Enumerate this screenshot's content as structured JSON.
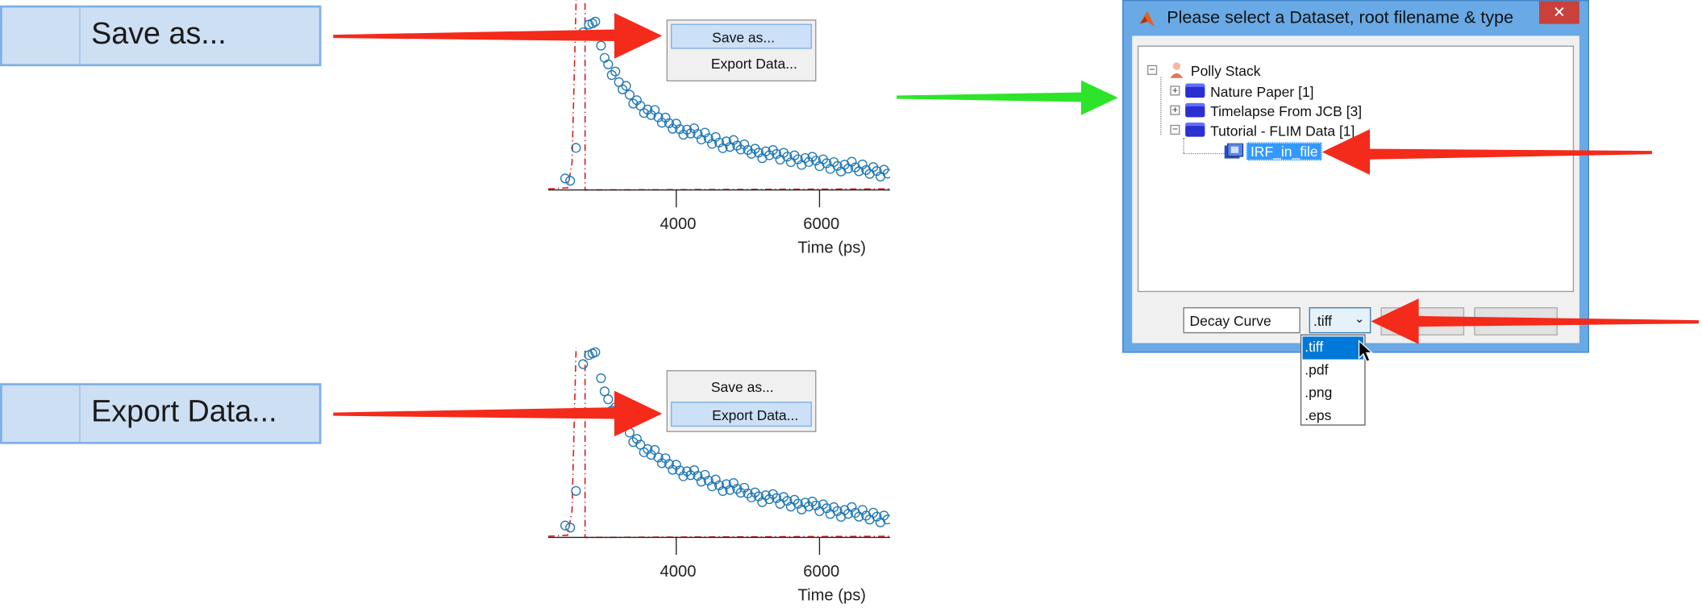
{
  "zoom": {
    "save_as_label": "Save as...",
    "export_data_label": "Export Data..."
  },
  "context_menu": {
    "items": [
      "Save as...",
      "Export Data..."
    ]
  },
  "plot": {
    "x_label": "Time (ps)",
    "x_ticks": [
      "4000",
      "6000"
    ]
  },
  "chart_data": [
    {
      "type": "scatter",
      "xlabel": "Time (ps)",
      "x_ticks": [
        4000,
        6000
      ],
      "series": [
        {
          "values": [
            [
              2450,
              0.02
            ],
            [
              2520,
              0.03
            ],
            [
              2600,
              0.25
            ],
            [
              2700,
              0.9
            ],
            [
              2780,
              0.97
            ],
            [
              2830,
              1.0
            ],
            [
              2870,
              0.97
            ],
            [
              2950,
              0.85
            ],
            [
              3000,
              0.8
            ],
            [
              3050,
              0.72
            ],
            [
              3100,
              0.68
            ],
            [
              3150,
              0.66
            ],
            [
              3200,
              0.62
            ],
            [
              3250,
              0.6
            ],
            [
              3300,
              0.58
            ],
            [
              3350,
              0.55
            ],
            [
              3400,
              0.52
            ],
            [
              3450,
              0.5
            ],
            [
              3500,
              0.49
            ],
            [
              3550,
              0.47
            ],
            [
              3600,
              0.45
            ],
            [
              3650,
              0.44
            ],
            [
              3700,
              0.43
            ],
            [
              3750,
              0.41
            ],
            [
              3800,
              0.4
            ],
            [
              3850,
              0.39
            ],
            [
              3900,
              0.38
            ],
            [
              3950,
              0.37
            ],
            [
              4000,
              0.36
            ],
            [
              4050,
              0.35
            ],
            [
              4100,
              0.34
            ],
            [
              4150,
              0.33
            ],
            [
              4200,
              0.33
            ],
            [
              4250,
              0.32
            ],
            [
              4300,
              0.31
            ],
            [
              4350,
              0.3
            ],
            [
              4400,
              0.3
            ],
            [
              4450,
              0.29
            ],
            [
              4500,
              0.28
            ],
            [
              4550,
              0.28
            ],
            [
              4600,
              0.27
            ],
            [
              4650,
              0.26
            ],
            [
              4700,
              0.26
            ],
            [
              4750,
              0.25
            ],
            [
              4800,
              0.25
            ],
            [
              4850,
              0.24
            ],
            [
              4900,
              0.24
            ],
            [
              4950,
              0.23
            ],
            [
              5000,
              0.22
            ],
            [
              5050,
              0.22
            ],
            [
              5100,
              0.21
            ],
            [
              5150,
              0.21
            ],
            [
              5200,
              0.2
            ],
            [
              5250,
              0.2
            ],
            [
              5300,
              0.2
            ],
            [
              5350,
              0.19
            ],
            [
              5400,
              0.19
            ],
            [
              5450,
              0.18
            ],
            [
              5500,
              0.18
            ],
            [
              5550,
              0.18
            ],
            [
              5600,
              0.17
            ],
            [
              5650,
              0.17
            ],
            [
              5700,
              0.17
            ],
            [
              5750,
              0.16
            ],
            [
              5800,
              0.16
            ],
            [
              5850,
              0.16
            ],
            [
              5900,
              0.15
            ],
            [
              5950,
              0.15
            ],
            [
              6000,
              0.14
            ],
            [
              6050,
              0.14
            ],
            [
              6100,
              0.14
            ],
            [
              6150,
              0.13
            ],
            [
              6200,
              0.13
            ],
            [
              6250,
              0.13
            ],
            [
              6300,
              0.12
            ],
            [
              6350,
              0.12
            ],
            [
              6400,
              0.12
            ],
            [
              6450,
              0.12
            ],
            [
              6500,
              0.11
            ],
            [
              6550,
              0.11
            ],
            [
              6600,
              0.11
            ],
            [
              6650,
              0.1
            ],
            [
              6700,
              0.1
            ],
            [
              6750,
              0.1
            ],
            [
              6800,
              0.1
            ],
            [
              6850,
              0.09
            ],
            [
              6900,
              0.09
            ],
            [
              6950,
              0.09
            ]
          ]
        }
      ]
    }
  ],
  "dialog": {
    "title": "Please select a Dataset, root filename & type",
    "close": "✕",
    "tree": {
      "root": "Polly Stack",
      "items": [
        "Nature Paper [1]",
        "Timelapse From JCB [3]",
        "Tutorial - FLIM Data [1]"
      ],
      "selected_child": "IRF_in_file"
    },
    "filename": "Decay Curve",
    "type_selected": ".tiff",
    "type_options": [
      ".tiff",
      ".pdf",
      ".png",
      ".eps"
    ]
  },
  "colors": {
    "arrow_red": "#f42a1b",
    "arrow_green": "#2ee42a",
    "marker_blue": "#1f77b4",
    "fit_red": "#d81e1e"
  }
}
